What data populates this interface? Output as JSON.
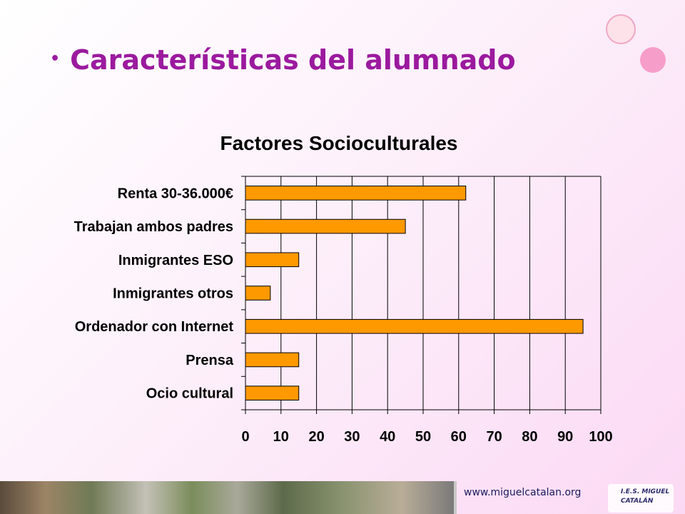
{
  "slide": {
    "bullet": "•",
    "title": "Características del alumnado"
  },
  "footer": {
    "url": "www.miguelcatalan.org",
    "logo_text": "I.E.S. MIGUEL CATALÁN"
  },
  "colors": {
    "title": "#9b1a9e",
    "bar_fill": "#ff9900",
    "bar_stroke": "#000000"
  },
  "chart_data": {
    "type": "bar",
    "orientation": "horizontal",
    "title": "Factores Socioculturales",
    "categories": [
      "Renta 30-36.000€",
      "Trabajan ambos padres",
      "Inmigrantes ESO",
      "Inmigrantes otros",
      "Ordenador con Internet",
      "Prensa",
      "Ocio cultural"
    ],
    "values": [
      62,
      45,
      15,
      7,
      95,
      15,
      15
    ],
    "xlim": [
      0,
      100
    ],
    "xticks": [
      0,
      10,
      20,
      30,
      40,
      50,
      60,
      70,
      80,
      90,
      100
    ],
    "xlabel": "",
    "ylabel": "",
    "grid": "vertical"
  }
}
